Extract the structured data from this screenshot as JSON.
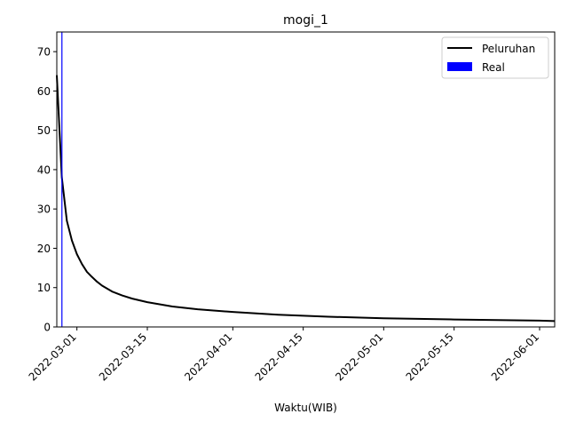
{
  "chart_data": {
    "type": "line",
    "title": "mogi_1",
    "xlabel": "Waktu(WIB)",
    "ylabel": "",
    "x_is_date": true,
    "xlim": [
      "2022-02-25",
      "2022-06-04"
    ],
    "ylim": [
      0,
      75
    ],
    "x_ticks": [
      "2022-03-01",
      "2022-03-15",
      "2022-04-01",
      "2022-04-15",
      "2022-05-01",
      "2022-05-15",
      "2022-06-01"
    ],
    "y_ticks": [
      0,
      10,
      20,
      30,
      40,
      50,
      60,
      70
    ],
    "grid": false,
    "legend_position": "upper-right",
    "legend": [
      {
        "label": "Peluruhan",
        "kind": "line",
        "color": "#000000"
      },
      {
        "label": "Real",
        "kind": "bar",
        "color": "#0000ff"
      }
    ],
    "series": [
      {
        "name": "Peluruhan",
        "type": "line",
        "color": "#000000",
        "x": [
          "2022-02-25",
          "2022-02-26",
          "2022-02-27",
          "2022-02-28",
          "2022-03-01",
          "2022-03-02",
          "2022-03-03",
          "2022-03-04",
          "2022-03-05",
          "2022-03-06",
          "2022-03-08",
          "2022-03-10",
          "2022-03-12",
          "2022-03-15",
          "2022-03-20",
          "2022-03-25",
          "2022-04-01",
          "2022-04-10",
          "2022-04-20",
          "2022-05-01",
          "2022-05-15",
          "2022-06-01",
          "2022-06-04"
        ],
        "y": [
          64,
          38,
          27,
          22,
          18.5,
          16,
          14,
          12.7,
          11.5,
          10.5,
          9,
          8,
          7.2,
          6.3,
          5.2,
          4.5,
          3.8,
          3.1,
          2.6,
          2.2,
          1.9,
          1.6,
          1.5
        ]
      },
      {
        "name": "Real",
        "type": "bar",
        "color": "#0000ff",
        "x": [
          "2022-02-26"
        ],
        "y": [
          75
        ]
      }
    ]
  }
}
